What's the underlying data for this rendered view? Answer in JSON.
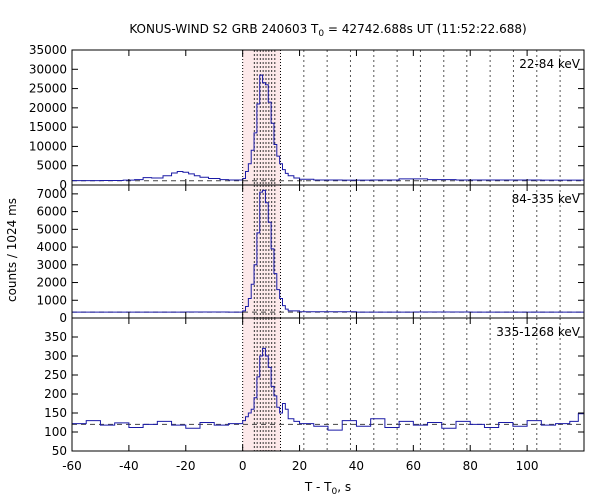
{
  "chart_data": {
    "type": "line",
    "title_pre": "KONUS-WIND S2 GRB 240603 T",
    "title_sub": "0",
    "title_post": " = 42742.688s UT (11:52:22.688)",
    "xlabel_pre": "T - T",
    "xlabel_sub": "0",
    "xlabel_post": ", s",
    "ylabel": "counts / 1024 ms",
    "xlim": [
      -60,
      120
    ],
    "x_ticks": [
      -60,
      -40,
      -20,
      0,
      20,
      40,
      60,
      80,
      100
    ],
    "x_tick_labels": [
      "-60",
      "-40",
      "-20",
      "0",
      "20",
      "40",
      "60",
      "80",
      "100"
    ],
    "highlight_interval": [
      0,
      13.3
    ],
    "interval_marks": [
      0,
      13.3
    ],
    "spectrum_marks": [
      4.1,
      5.1,
      6.2,
      7.2,
      8.2,
      9.2,
      10.2,
      11.3
    ],
    "sparse_marks": [
      21.5,
      29.7,
      37.9,
      46.1,
      54.3,
      62.5,
      70.7,
      78.8,
      87.0,
      95.2,
      103.4,
      111.6
    ],
    "panels": [
      {
        "name": "22-84 keV",
        "label": "22-84 keV",
        "ylim": [
          0,
          35000
        ],
        "yticks": [
          0,
          5000,
          10000,
          15000,
          20000,
          25000,
          30000,
          35000
        ],
        "ytick_labels": [
          "0",
          "5000",
          "10000",
          "15000",
          "20000",
          "25000",
          "30000",
          "35000"
        ],
        "background": 1100,
        "points": [
          [
            -60,
            1150
          ],
          [
            -50,
            1180
          ],
          [
            -42,
            1250
          ],
          [
            -38,
            1400
          ],
          [
            -35,
            1900
          ],
          [
            -32,
            1800
          ],
          [
            -28,
            2400
          ],
          [
            -25,
            3100
          ],
          [
            -23,
            3500
          ],
          [
            -21,
            3300
          ],
          [
            -19,
            2900
          ],
          [
            -17,
            2400
          ],
          [
            -15,
            2000
          ],
          [
            -12,
            1700
          ],
          [
            -8,
            1400
          ],
          [
            -5,
            1300
          ],
          [
            -2,
            1300
          ],
          [
            0,
            1700
          ],
          [
            1,
            3500
          ],
          [
            2,
            5500
          ],
          [
            3,
            9000
          ],
          [
            4,
            13500
          ],
          [
            5,
            21000
          ],
          [
            6,
            28500
          ],
          [
            7,
            26500
          ],
          [
            8,
            26000
          ],
          [
            9,
            21500
          ],
          [
            10,
            16000
          ],
          [
            11,
            10500
          ],
          [
            12,
            7500
          ],
          [
            13,
            5500
          ],
          [
            14,
            4000
          ],
          [
            15,
            3000
          ],
          [
            16,
            2400
          ],
          [
            18,
            1800
          ],
          [
            20,
            1500
          ],
          [
            25,
            1300
          ],
          [
            35,
            1250
          ],
          [
            45,
            1300
          ],
          [
            55,
            1600
          ],
          [
            65,
            1400
          ],
          [
            75,
            1300
          ],
          [
            90,
            1300
          ],
          [
            105,
            1250
          ],
          [
            120,
            1250
          ]
        ]
      },
      {
        "name": "84-335 keV",
        "label": "84-335 keV",
        "ylim": [
          0,
          7500
        ],
        "yticks": [
          0,
          1000,
          2000,
          3000,
          4000,
          5000,
          6000,
          7000
        ],
        "ytick_labels": [
          "0",
          "1000",
          "2000",
          "3000",
          "4000",
          "5000",
          "6000",
          "7000"
        ],
        "background": 330,
        "points": [
          [
            -60,
            330
          ],
          [
            -40,
            330
          ],
          [
            -20,
            335
          ],
          [
            -5,
            330
          ],
          [
            0,
            400
          ],
          [
            1,
            650
          ],
          [
            2,
            1100
          ],
          [
            3,
            1900
          ],
          [
            4,
            3000
          ],
          [
            5,
            4800
          ],
          [
            6,
            7100
          ],
          [
            7,
            7200
          ],
          [
            8,
            6500
          ],
          [
            9,
            5400
          ],
          [
            10,
            3900
          ],
          [
            11,
            2500
          ],
          [
            12,
            1600
          ],
          [
            13,
            1100
          ],
          [
            14,
            700
          ],
          [
            15,
            500
          ],
          [
            16,
            400
          ],
          [
            20,
            350
          ],
          [
            40,
            330
          ],
          [
            60,
            335
          ],
          [
            80,
            330
          ],
          [
            100,
            330
          ],
          [
            120,
            330
          ]
        ]
      },
      {
        "name": "335-1268 keV",
        "label": "335-1268 keV",
        "ylim": [
          50,
          400
        ],
        "yticks": [
          50,
          100,
          150,
          200,
          250,
          300,
          350
        ],
        "ytick_labels": [
          "50",
          "100",
          "150",
          "200",
          "250",
          "300",
          "350"
        ],
        "background": 120,
        "points": [
          [
            -60,
            122
          ],
          [
            -55,
            130
          ],
          [
            -50,
            118
          ],
          [
            -45,
            124
          ],
          [
            -40,
            112
          ],
          [
            -35,
            120
          ],
          [
            -30,
            128
          ],
          [
            -25,
            118
          ],
          [
            -20,
            110
          ],
          [
            -15,
            125
          ],
          [
            -10,
            118
          ],
          [
            -5,
            122
          ],
          [
            0,
            130
          ],
          [
            1,
            140
          ],
          [
            2,
            150
          ],
          [
            3,
            160
          ],
          [
            4,
            190
          ],
          [
            5,
            245
          ],
          [
            6,
            300
          ],
          [
            7,
            320
          ],
          [
            8,
            300
          ],
          [
            9,
            270
          ],
          [
            10,
            220
          ],
          [
            11,
            195
          ],
          [
            12,
            165
          ],
          [
            13,
            150
          ],
          [
            14,
            175
          ],
          [
            15,
            160
          ],
          [
            16,
            135
          ],
          [
            18,
            128
          ],
          [
            20,
            122
          ],
          [
            25,
            115
          ],
          [
            30,
            105
          ],
          [
            35,
            130
          ],
          [
            40,
            115
          ],
          [
            45,
            135
          ],
          [
            50,
            112
          ],
          [
            55,
            128
          ],
          [
            60,
            118
          ],
          [
            65,
            125
          ],
          [
            70,
            110
          ],
          [
            75,
            128
          ],
          [
            80,
            120
          ],
          [
            85,
            112
          ],
          [
            90,
            125
          ],
          [
            95,
            115
          ],
          [
            100,
            130
          ],
          [
            105,
            118
          ],
          [
            110,
            122
          ],
          [
            115,
            128
          ],
          [
            118,
            148
          ],
          [
            120,
            148
          ]
        ]
      }
    ]
  }
}
